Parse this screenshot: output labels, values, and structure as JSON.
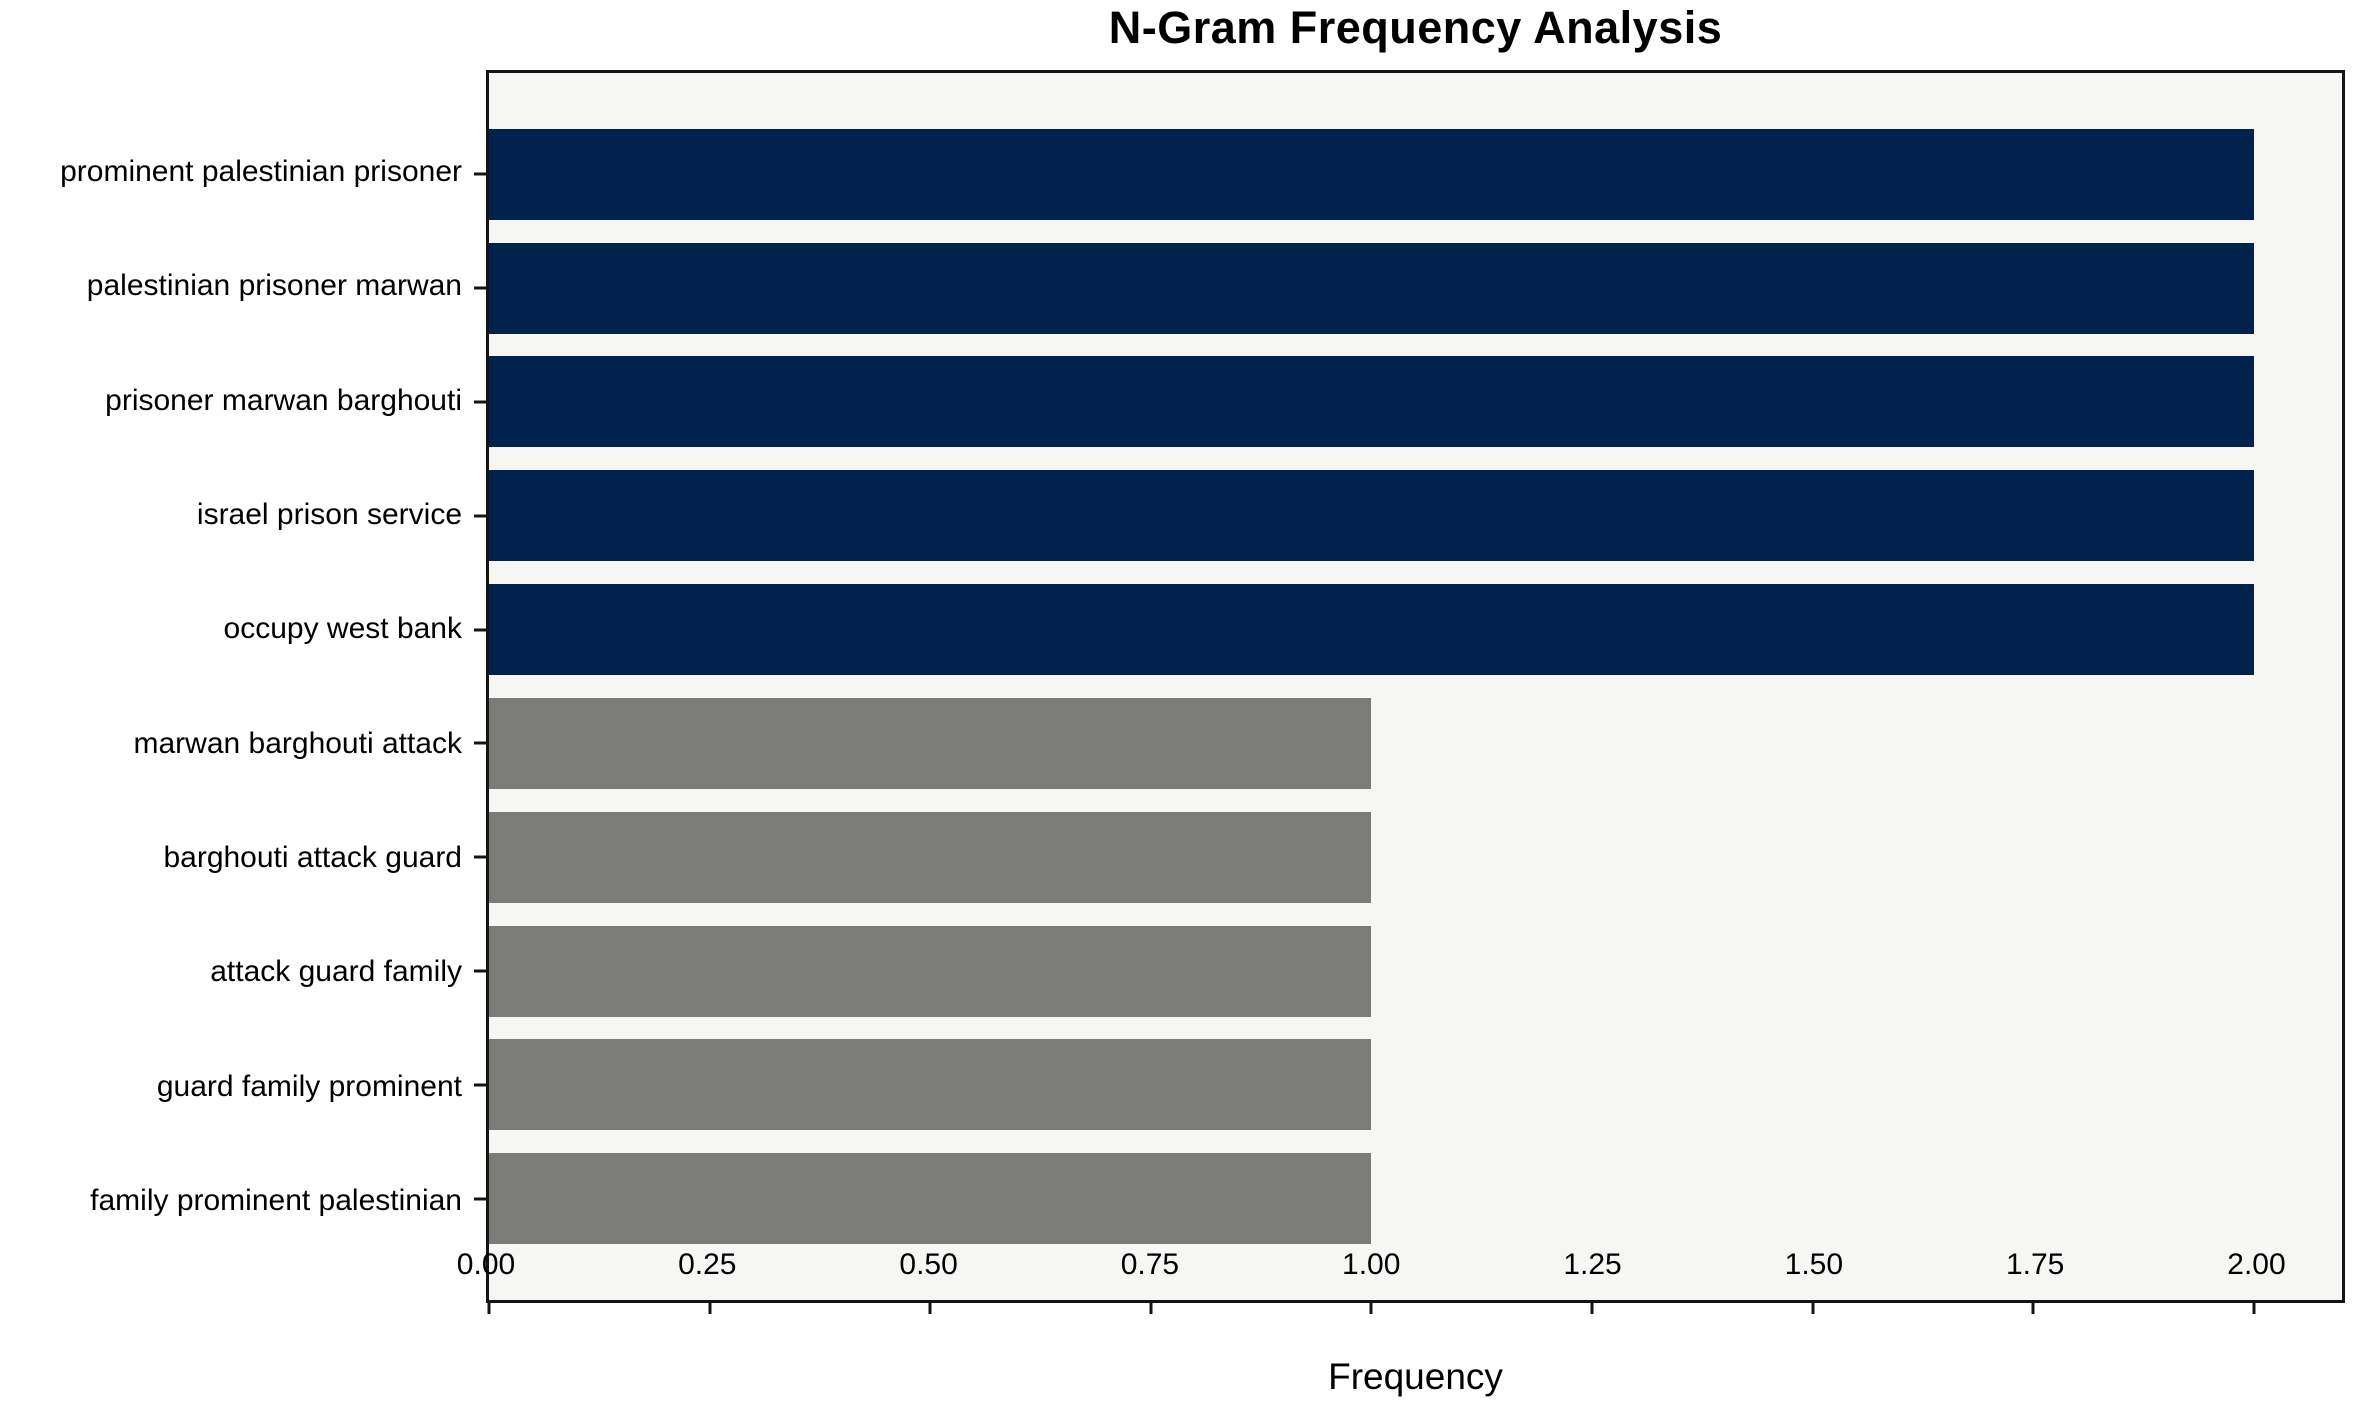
{
  "chart_data": {
    "type": "bar",
    "orientation": "horizontal",
    "title": "N-Gram Frequency Analysis",
    "xlabel": "Frequency",
    "categories": [
      "prominent palestinian prisoner",
      "palestinian prisoner marwan",
      "prisoner marwan barghouti",
      "israel prison service",
      "occupy west bank",
      "marwan barghouti attack",
      "barghouti attack guard",
      "attack guard family",
      "guard family prominent",
      "family prominent palestinian"
    ],
    "values": [
      2,
      2,
      2,
      2,
      2,
      1,
      1,
      1,
      1,
      1
    ],
    "bar_colors": [
      "#01224c",
      "#01224c",
      "#01224c",
      "#01224c",
      "#01224c",
      "#7b7b78",
      "#7b7b78",
      "#7b7b78",
      "#7b7b78",
      "#7b7b78"
    ],
    "xlim": [
      0,
      2.1
    ],
    "xticks": [
      0,
      0.25,
      0.5,
      0.75,
      1.0,
      1.25,
      1.5,
      1.75,
      2.0
    ],
    "xtick_labels": [
      "0.00",
      "0.25",
      "0.50",
      "0.75",
      "1.00",
      "1.25",
      "1.50",
      "1.75",
      "2.00"
    ],
    "grid": false,
    "legend_position": "none",
    "plot_bg": "#f6f6f5",
    "figure_bg": "#ffffff",
    "spine_color": "#141414",
    "text_color": "#000000"
  }
}
